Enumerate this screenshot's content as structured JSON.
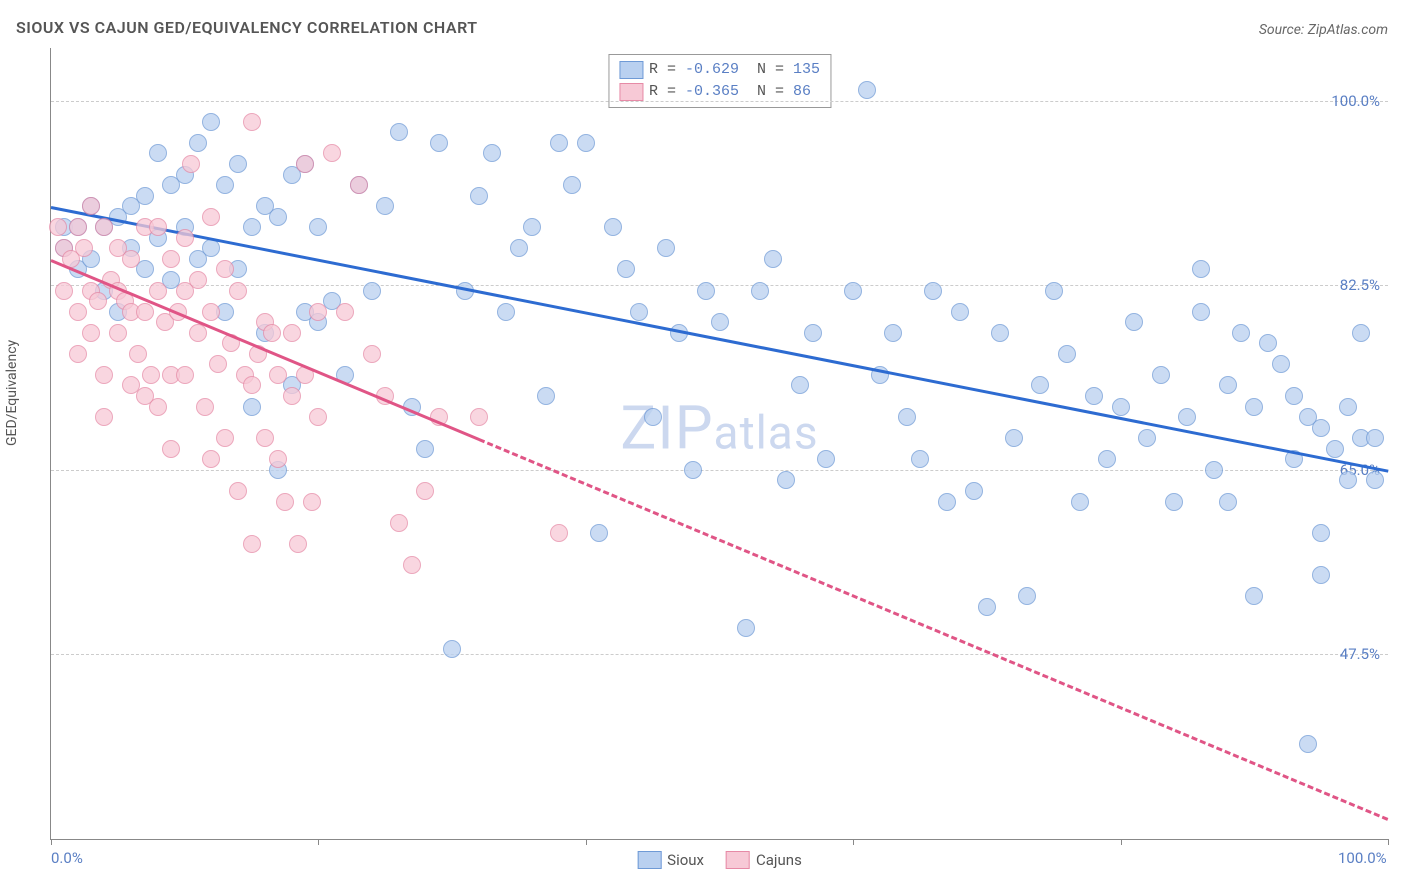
{
  "title": "SIOUX VS CAJUN GED/EQUIVALENCY CORRELATION CHART",
  "source": "Source: ZipAtlas.com",
  "ylabel": "GED/Equivalency",
  "watermark_big": "ZIP",
  "watermark_small": "atlas",
  "chart": {
    "type": "scatter",
    "xlim": [
      0,
      100
    ],
    "ylim": [
      30,
      105
    ],
    "grid_y": [
      47.5,
      65.0,
      82.5,
      100.0
    ],
    "ytick_labels": [
      "47.5%",
      "65.0%",
      "82.5%",
      "100.0%"
    ],
    "ytick_color": "#5a7fc4",
    "xticks": [
      0,
      20,
      40,
      60,
      80,
      100
    ],
    "xtick_labels": {
      "0": "0.0%",
      "100": "100.0%"
    },
    "xtick_color": "#5a7fc4",
    "grid_color": "#cccccc",
    "background_color": "#ffffff",
    "marker_radius": 9,
    "marker_border_width": 1.5,
    "series": [
      {
        "name": "Sioux",
        "color_fill": "#b9d0f0",
        "color_border": "#6f9ad6",
        "line_color": "#2d6bd1",
        "line_width": 3,
        "line_dash": "solid",
        "R": "-0.629",
        "N": "135",
        "regression": {
          "x1": 0,
          "y1": 90,
          "x2": 100,
          "y2": 65
        },
        "points": [
          [
            1,
            88
          ],
          [
            1,
            86
          ],
          [
            2,
            88
          ],
          [
            2,
            84
          ],
          [
            3,
            90
          ],
          [
            3,
            85
          ],
          [
            4,
            88
          ],
          [
            4,
            82
          ],
          [
            5,
            80
          ],
          [
            5,
            89
          ],
          [
            6,
            90
          ],
          [
            6,
            86
          ],
          [
            7,
            91
          ],
          [
            7,
            84
          ],
          [
            8,
            95
          ],
          [
            8,
            87
          ],
          [
            9,
            92
          ],
          [
            9,
            83
          ],
          [
            10,
            93
          ],
          [
            10,
            88
          ],
          [
            11,
            96
          ],
          [
            11,
            85
          ],
          [
            12,
            98
          ],
          [
            12,
            86
          ],
          [
            13,
            92
          ],
          [
            13,
            80
          ],
          [
            14,
            94
          ],
          [
            14,
            84
          ],
          [
            15,
            71
          ],
          [
            15,
            88
          ],
          [
            16,
            90
          ],
          [
            16,
            78
          ],
          [
            17,
            65
          ],
          [
            17,
            89
          ],
          [
            18,
            93
          ],
          [
            18,
            73
          ],
          [
            19,
            94
          ],
          [
            19,
            80
          ],
          [
            20,
            79
          ],
          [
            20,
            88
          ],
          [
            21,
            81
          ],
          [
            22,
            74
          ],
          [
            23,
            92
          ],
          [
            24,
            82
          ],
          [
            25,
            90
          ],
          [
            26,
            97
          ],
          [
            27,
            71
          ],
          [
            28,
            67
          ],
          [
            29,
            96
          ],
          [
            30,
            48
          ],
          [
            31,
            82
          ],
          [
            32,
            91
          ],
          [
            33,
            95
          ],
          [
            34,
            80
          ],
          [
            35,
            86
          ],
          [
            36,
            88
          ],
          [
            37,
            72
          ],
          [
            38,
            96
          ],
          [
            39,
            92
          ],
          [
            40,
            96
          ],
          [
            41,
            59
          ],
          [
            42,
            88
          ],
          [
            43,
            84
          ],
          [
            44,
            80
          ],
          [
            45,
            70
          ],
          [
            46,
            86
          ],
          [
            47,
            78
          ],
          [
            48,
            65
          ],
          [
            49,
            82
          ],
          [
            50,
            79
          ],
          [
            52,
            50
          ],
          [
            53,
            82
          ],
          [
            54,
            85
          ],
          [
            55,
            64
          ],
          [
            56,
            73
          ],
          [
            57,
            78
          ],
          [
            58,
            66
          ],
          [
            60,
            82
          ],
          [
            61,
            101
          ],
          [
            62,
            74
          ],
          [
            63,
            78
          ],
          [
            64,
            70
          ],
          [
            65,
            66
          ],
          [
            66,
            82
          ],
          [
            67,
            62
          ],
          [
            68,
            80
          ],
          [
            69,
            63
          ],
          [
            70,
            52
          ],
          [
            71,
            78
          ],
          [
            72,
            68
          ],
          [
            73,
            53
          ],
          [
            74,
            73
          ],
          [
            75,
            82
          ],
          [
            76,
            76
          ],
          [
            77,
            62
          ],
          [
            78,
            72
          ],
          [
            79,
            66
          ],
          [
            80,
            71
          ],
          [
            81,
            79
          ],
          [
            82,
            68
          ],
          [
            83,
            74
          ],
          [
            84,
            62
          ],
          [
            85,
            70
          ],
          [
            86,
            80
          ],
          [
            86,
            84
          ],
          [
            87,
            65
          ],
          [
            88,
            73
          ],
          [
            88,
            62
          ],
          [
            89,
            78
          ],
          [
            90,
            71
          ],
          [
            90,
            53
          ],
          [
            91,
            77
          ],
          [
            92,
            75
          ],
          [
            93,
            66
          ],
          [
            93,
            72
          ],
          [
            94,
            39
          ],
          [
            94,
            70
          ],
          [
            95,
            69
          ],
          [
            95,
            55
          ],
          [
            95,
            59
          ],
          [
            96,
            67
          ],
          [
            97,
            71
          ],
          [
            97,
            64
          ],
          [
            98,
            68
          ],
          [
            98,
            78
          ],
          [
            99,
            64
          ],
          [
            99,
            68
          ]
        ]
      },
      {
        "name": "Cajuns",
        "color_fill": "#f7c9d6",
        "color_border": "#e68aa6",
        "line_color": "#e05586",
        "line_width": 3,
        "line_dash": "dashed",
        "solid_until_x": 32,
        "R": "-0.365",
        "N": "86",
        "regression": {
          "x1": 0,
          "y1": 85,
          "x2": 100,
          "y2": 32
        },
        "points": [
          [
            0.5,
            88
          ],
          [
            1,
            86
          ],
          [
            1,
            82
          ],
          [
            1.5,
            85
          ],
          [
            2,
            88
          ],
          [
            2,
            80
          ],
          [
            2,
            76
          ],
          [
            2.5,
            86
          ],
          [
            3,
            90
          ],
          [
            3,
            82
          ],
          [
            3,
            78
          ],
          [
            3.5,
            81
          ],
          [
            4,
            88
          ],
          [
            4,
            74
          ],
          [
            4,
            70
          ],
          [
            4.5,
            83
          ],
          [
            5,
            86
          ],
          [
            5,
            78
          ],
          [
            5,
            82
          ],
          [
            5.5,
            81
          ],
          [
            6,
            80
          ],
          [
            6,
            73
          ],
          [
            6,
            85
          ],
          [
            6.5,
            76
          ],
          [
            7,
            88
          ],
          [
            7,
            80
          ],
          [
            7,
            72
          ],
          [
            7.5,
            74
          ],
          [
            8,
            82
          ],
          [
            8,
            88
          ],
          [
            8,
            71
          ],
          [
            8.5,
            79
          ],
          [
            9,
            85
          ],
          [
            9,
            74
          ],
          [
            9,
            67
          ],
          [
            9.5,
            80
          ],
          [
            10,
            82
          ],
          [
            10,
            87
          ],
          [
            10,
            74
          ],
          [
            10.5,
            94
          ],
          [
            11,
            78
          ],
          [
            11,
            83
          ],
          [
            11.5,
            71
          ],
          [
            12,
            89
          ],
          [
            12,
            80
          ],
          [
            12,
            66
          ],
          [
            12.5,
            75
          ],
          [
            13,
            84
          ],
          [
            13,
            68
          ],
          [
            13.5,
            77
          ],
          [
            14,
            82
          ],
          [
            14,
            63
          ],
          [
            14.5,
            74
          ],
          [
            15,
            98
          ],
          [
            15,
            58
          ],
          [
            15.5,
            76
          ],
          [
            15,
            73
          ],
          [
            16,
            68
          ],
          [
            16,
            79
          ],
          [
            16.5,
            78
          ],
          [
            17,
            74
          ],
          [
            17,
            66
          ],
          [
            17.5,
            62
          ],
          [
            18,
            72
          ],
          [
            18,
            78
          ],
          [
            18.5,
            58
          ],
          [
            19,
            74
          ],
          [
            19,
            94
          ],
          [
            19.5,
            62
          ],
          [
            20,
            70
          ],
          [
            20,
            80
          ],
          [
            21,
            95
          ],
          [
            22,
            80
          ],
          [
            23,
            92
          ],
          [
            24,
            76
          ],
          [
            25,
            72
          ],
          [
            26,
            60
          ],
          [
            27,
            56
          ],
          [
            28,
            63
          ],
          [
            29,
            70
          ],
          [
            32,
            70
          ],
          [
            38,
            59
          ]
        ]
      }
    ],
    "legend_bottom": [
      {
        "label": "Sioux",
        "swatch_fill": "#b9d0f0",
        "swatch_border": "#6f9ad6"
      },
      {
        "label": "Cajuns",
        "swatch_fill": "#f7c9d6",
        "swatch_border": "#e68aa6"
      }
    ],
    "legend_stats_label_R": "R =",
    "legend_stats_label_N": "N ="
  }
}
